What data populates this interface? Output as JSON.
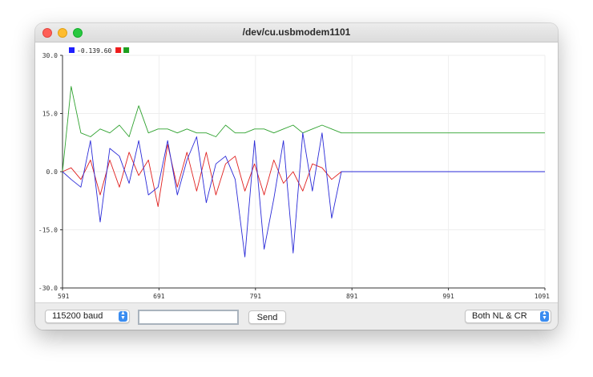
{
  "window": {
    "title": "/dev/cu.usbmodem1101"
  },
  "legend": {
    "items": [
      {
        "color": "#1f1fff",
        "label": "-0.139.60"
      },
      {
        "color": "#ee1c1c",
        "label": ""
      },
      {
        "color": "#1ea01e",
        "label": ""
      }
    ]
  },
  "chart_data": {
    "type": "line",
    "xlim": [
      591,
      1091
    ],
    "ylim": [
      -30,
      30
    ],
    "x_ticks": [
      "591",
      "691",
      "791",
      "891",
      "991",
      "1091"
    ],
    "y_ticks": [
      "30.0",
      "15.0",
      "0.0",
      "-15.0",
      "-30.0"
    ],
    "grid": true,
    "legend_position": "top-left",
    "x": [
      591,
      600,
      610,
      620,
      630,
      640,
      650,
      660,
      670,
      680,
      690,
      700,
      710,
      720,
      730,
      740,
      750,
      760,
      770,
      780,
      790,
      800,
      810,
      820,
      830,
      840,
      850,
      860,
      870,
      880,
      890,
      900,
      950,
      1000,
      1050,
      1091
    ],
    "series": [
      {
        "color": "#2a2ad8",
        "values": [
          0,
          -2,
          -4,
          8,
          -13,
          6,
          4,
          -3,
          8,
          -6,
          -4,
          8,
          -6,
          3,
          9,
          -8,
          2,
          4,
          -2,
          -22,
          8,
          -20,
          -7,
          8,
          -21,
          10,
          -5,
          10,
          -12,
          0,
          0,
          0,
          0,
          0,
          0,
          0
        ]
      },
      {
        "color": "#e0201f",
        "values": [
          0,
          1,
          -2,
          3,
          -6,
          3,
          -4,
          5,
          -1,
          3,
          -9,
          7,
          -4,
          5,
          -5,
          5,
          -6,
          2,
          4,
          -5,
          2,
          -6,
          3,
          -3,
          0,
          -5,
          2,
          1,
          -2,
          0,
          0,
          0,
          0,
          0,
          0,
          0
        ]
      },
      {
        "color": "#2fa22f",
        "values": [
          0,
          22,
          10,
          9,
          11,
          10,
          12,
          9,
          17,
          10,
          11,
          11,
          10,
          11,
          10,
          10,
          9,
          12,
          10,
          10,
          11,
          11,
          10,
          11,
          12,
          10,
          11,
          12,
          11,
          10,
          10,
          10,
          10,
          10,
          10,
          10
        ]
      }
    ]
  },
  "toolbar": {
    "baud": "115200 baud",
    "input_value": "",
    "send_label": "Send",
    "line_ending": "Both NL & CR"
  }
}
